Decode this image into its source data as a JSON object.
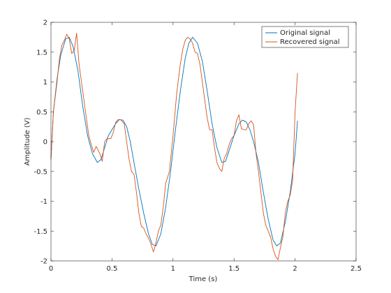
{
  "chart_data": {
    "type": "line",
    "xlabel": "Time (s)",
    "ylabel": "Amplitude (V)",
    "xlim": [
      0,
      2.5
    ],
    "ylim": [
      -2,
      2
    ],
    "xticks": [
      "0",
      "0.5",
      "1",
      "1.5",
      "2",
      "2.5"
    ],
    "yticks": [
      "2",
      "1.5",
      "1",
      "0.5",
      "0",
      "-0.5",
      "-1",
      "-1.5",
      "-2"
    ],
    "grid": false,
    "legend_position": "top-right",
    "series": [
      {
        "name": "Original signal",
        "color": "#0072BD",
        "x": [
          0,
          0.02,
          0.05,
          0.08,
          0.12,
          0.15,
          0.18,
          0.22,
          0.26,
          0.3,
          0.34,
          0.38,
          0.41,
          0.44,
          0.47,
          0.5,
          0.53,
          0.56,
          0.59,
          0.62,
          0.65,
          0.68,
          0.72,
          0.76,
          0.8,
          0.83,
          0.86,
          0.9,
          0.94,
          0.98,
          1.02,
          1.06,
          1.1,
          1.13,
          1.16,
          1.2,
          1.24,
          1.28,
          1.32,
          1.36,
          1.4,
          1.43,
          1.46,
          1.5,
          1.54,
          1.57,
          1.6,
          1.63,
          1.66,
          1.7,
          1.74,
          1.78,
          1.82,
          1.85,
          1.88,
          1.92,
          1.96,
          2.0,
          2.02
        ],
        "y": [
          -0.3,
          0.5,
          1.05,
          1.45,
          1.72,
          1.75,
          1.6,
          1.2,
          0.6,
          0.1,
          -0.2,
          -0.35,
          -0.3,
          -0.1,
          0.1,
          0.2,
          0.3,
          0.37,
          0.36,
          0.25,
          0.0,
          -0.35,
          -0.8,
          -1.2,
          -1.55,
          -1.72,
          -1.75,
          -1.55,
          -1.1,
          -0.5,
          0.2,
          0.85,
          1.4,
          1.65,
          1.75,
          1.65,
          1.35,
          0.85,
          0.3,
          -0.1,
          -0.35,
          -0.33,
          -0.15,
          0.1,
          0.3,
          0.36,
          0.33,
          0.2,
          0.0,
          -0.35,
          -0.85,
          -1.3,
          -1.65,
          -1.75,
          -1.7,
          -1.35,
          -0.85,
          -0.2,
          0.35
        ]
      },
      {
        "name": "Recovered signal",
        "color": "#D95319",
        "x": [
          0,
          0.02,
          0.05,
          0.07,
          0.09,
          0.11,
          0.13,
          0.15,
          0.17,
          0.19,
          0.21,
          0.23,
          0.25,
          0.28,
          0.31,
          0.33,
          0.35,
          0.37,
          0.4,
          0.42,
          0.44,
          0.46,
          0.49,
          0.51,
          0.53,
          0.55,
          0.57,
          0.6,
          0.62,
          0.64,
          0.66,
          0.68,
          0.7,
          0.72,
          0.74,
          0.76,
          0.78,
          0.8,
          0.82,
          0.84,
          0.86,
          0.88,
          0.9,
          0.92,
          0.94,
          0.97,
          1.0,
          1.03,
          1.06,
          1.08,
          1.1,
          1.12,
          1.14,
          1.16,
          1.18,
          1.2,
          1.22,
          1.24,
          1.26,
          1.28,
          1.3,
          1.32,
          1.34,
          1.36,
          1.38,
          1.4,
          1.42,
          1.44,
          1.46,
          1.48,
          1.5,
          1.52,
          1.54,
          1.56,
          1.58,
          1.6,
          1.62,
          1.64,
          1.66,
          1.68,
          1.7,
          1.72,
          1.74,
          1.76,
          1.78,
          1.8,
          1.82,
          1.84,
          1.86,
          1.88,
          1.9,
          1.92,
          1.94,
          1.96,
          1.98,
          2.0,
          2.02
        ],
        "y": [
          -0.3,
          0.5,
          1.0,
          1.4,
          1.62,
          1.7,
          1.8,
          1.72,
          1.48,
          1.52,
          1.82,
          1.3,
          1.0,
          0.55,
          0.1,
          -0.05,
          -0.18,
          -0.08,
          -0.2,
          -0.33,
          0.0,
          0.05,
          0.05,
          0.15,
          0.32,
          0.37,
          0.37,
          0.3,
          0.0,
          -0.3,
          -0.5,
          -0.55,
          -0.85,
          -1.2,
          -1.42,
          -1.45,
          -1.55,
          -1.62,
          -1.72,
          -1.85,
          -1.7,
          -1.5,
          -1.4,
          -1.1,
          -0.7,
          -0.5,
          0.1,
          0.8,
          1.3,
          1.55,
          1.7,
          1.75,
          1.72,
          1.65,
          1.5,
          1.48,
          1.3,
          1.0,
          0.7,
          0.4,
          0.2,
          0.2,
          -0.1,
          -0.35,
          -0.45,
          -0.5,
          -0.28,
          -0.2,
          -0.05,
          0.05,
          0.1,
          0.35,
          0.45,
          0.22,
          0.2,
          0.2,
          0.3,
          0.35,
          0.28,
          -0.2,
          -0.5,
          -0.85,
          -1.2,
          -1.4,
          -1.5,
          -1.6,
          -1.8,
          -1.92,
          -1.98,
          -1.78,
          -1.6,
          -1.2,
          -1.0,
          -0.9,
          -0.65,
          0.5,
          1.15
        ]
      }
    ]
  }
}
